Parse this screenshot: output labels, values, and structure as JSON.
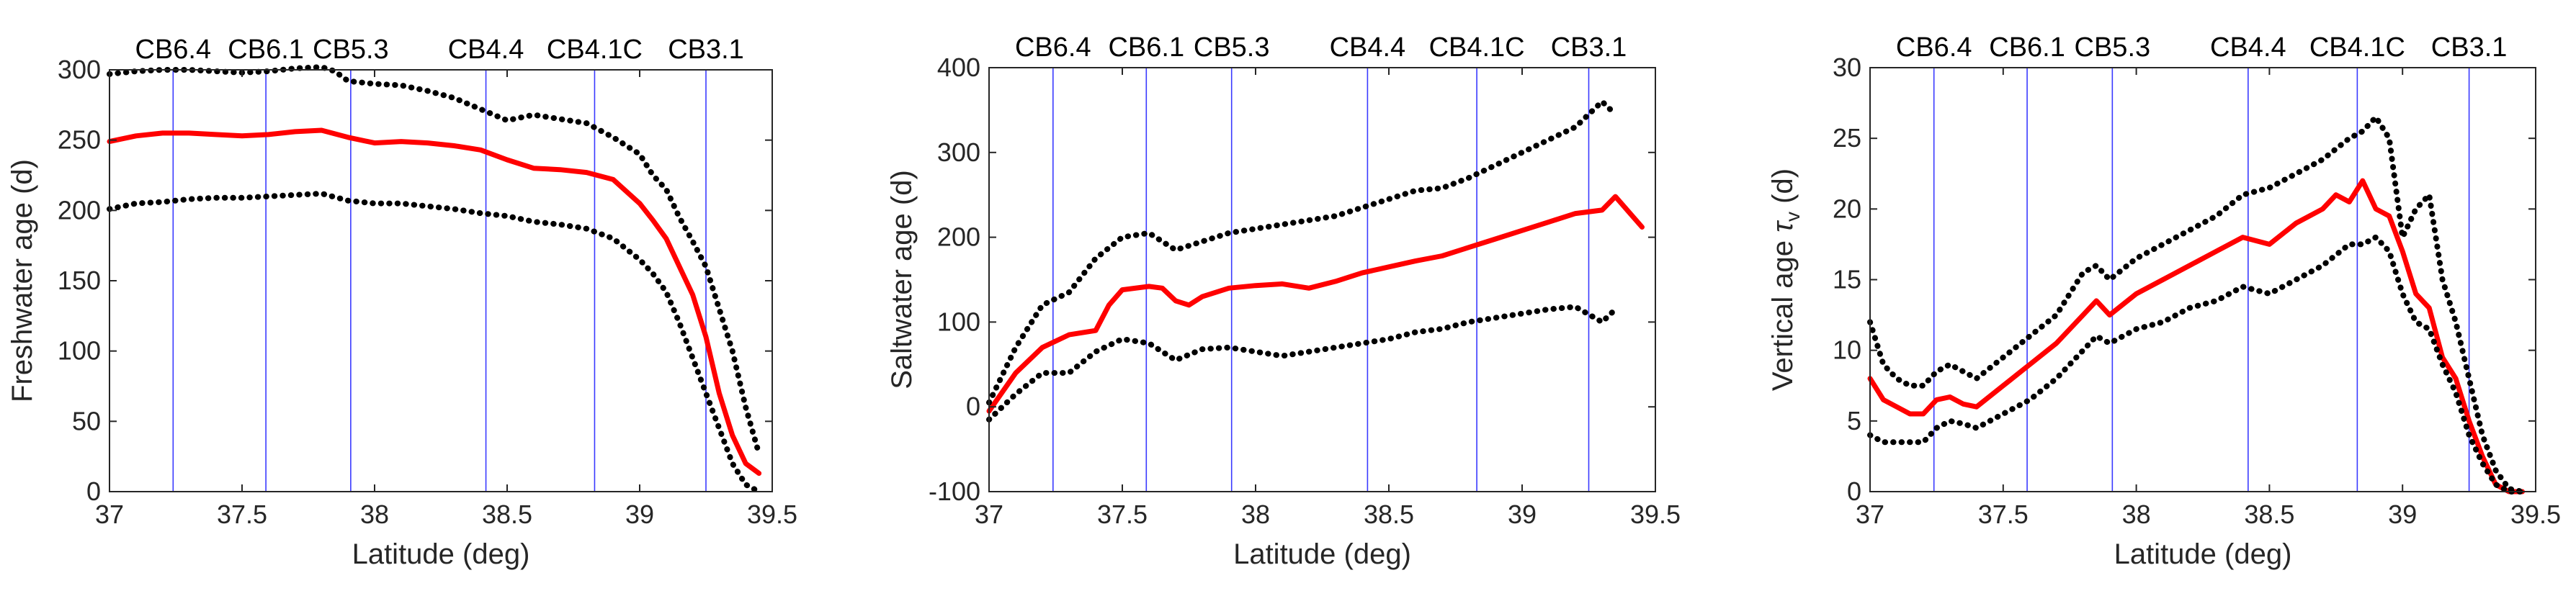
{
  "chart_data": [
    {
      "type": "line",
      "xlabel": "Latitude (deg)",
      "ylabel": "Freshwater age (d)",
      "xlim": [
        37,
        39.5
      ],
      "ylim": [
        0,
        300
      ],
      "xticks": [
        37,
        37.5,
        38,
        38.5,
        39,
        39.5
      ],
      "yticks": [
        0,
        50,
        100,
        150,
        200,
        250,
        300
      ],
      "stations": [
        {
          "name": "CB6.4",
          "lat": 37.24
        },
        {
          "name": "CB6.1",
          "lat": 37.59
        },
        {
          "name": "CB5.3",
          "lat": 37.91
        },
        {
          "name": "CB4.4",
          "lat": 38.42
        },
        {
          "name": "CB4.1C",
          "lat": 38.83
        },
        {
          "name": "CB3.1",
          "lat": 39.25
        }
      ],
      "series": [
        {
          "role": "mean",
          "color": "#ff0000",
          "style": "solid",
          "x": [
            37.0,
            37.1,
            37.2,
            37.3,
            37.4,
            37.5,
            37.6,
            37.7,
            37.8,
            37.9,
            38.0,
            38.1,
            38.2,
            38.3,
            38.4,
            38.5,
            38.6,
            38.7,
            38.8,
            38.9,
            39.0,
            39.05,
            39.1,
            39.15,
            39.2,
            39.25,
            39.3,
            39.35,
            39.4,
            39.45
          ],
          "y": [
            249,
            253,
            255,
            255,
            254,
            253,
            254,
            256,
            257,
            252,
            248,
            249,
            248,
            246,
            243,
            236,
            230,
            229,
            227,
            222,
            205,
            193,
            180,
            160,
            140,
            110,
            70,
            40,
            20,
            13
          ]
        },
        {
          "role": "upper",
          "color": "#000000",
          "style": "dotted",
          "x": [
            37.0,
            37.1,
            37.2,
            37.3,
            37.4,
            37.5,
            37.6,
            37.7,
            37.8,
            37.85,
            37.9,
            38.0,
            38.1,
            38.2,
            38.3,
            38.4,
            38.5,
            38.6,
            38.7,
            38.8,
            38.9,
            39.0,
            39.05,
            39.1,
            39.15,
            39.2,
            39.25,
            39.3,
            39.35,
            39.4,
            39.45
          ],
          "y": [
            297,
            299,
            300,
            300,
            299,
            298,
            299,
            301,
            302,
            299,
            292,
            290,
            289,
            285,
            280,
            272,
            264,
            268,
            265,
            262,
            252,
            240,
            225,
            215,
            195,
            178,
            160,
            130,
            100,
            60,
            27
          ]
        },
        {
          "role": "lower",
          "color": "#000000",
          "style": "dotted",
          "x": [
            37.0,
            37.1,
            37.2,
            37.3,
            37.4,
            37.5,
            37.6,
            37.7,
            37.8,
            37.9,
            38.0,
            38.1,
            38.2,
            38.3,
            38.4,
            38.5,
            38.6,
            38.7,
            38.8,
            38.9,
            39.0,
            39.05,
            39.1,
            39.15,
            39.2,
            39.25,
            39.3,
            39.35,
            39.4,
            39.45
          ],
          "y": [
            201,
            205,
            206,
            208,
            209,
            209,
            210,
            211,
            212,
            207,
            205,
            205,
            203,
            201,
            198,
            196,
            192,
            190,
            187,
            180,
            165,
            155,
            142,
            120,
            95,
            70,
            45,
            20,
            5,
            0
          ]
        }
      ]
    },
    {
      "type": "line",
      "xlabel": "Latitude (deg)",
      "ylabel": "Saltwater age (d)",
      "xlim": [
        37,
        39.5
      ],
      "ylim": [
        -100,
        400
      ],
      "xticks": [
        37,
        37.5,
        38,
        38.5,
        39,
        39.5
      ],
      "yticks": [
        -100,
        0,
        100,
        200,
        300,
        400
      ],
      "stations": [
        {
          "name": "CB6.4",
          "lat": 37.24
        },
        {
          "name": "CB6.1",
          "lat": 37.59
        },
        {
          "name": "CB5.3",
          "lat": 37.91
        },
        {
          "name": "CB4.4",
          "lat": 38.42
        },
        {
          "name": "CB4.1C",
          "lat": 38.83
        },
        {
          "name": "CB3.1",
          "lat": 39.25
        }
      ],
      "series": [
        {
          "role": "mean",
          "color": "#ff0000",
          "style": "solid",
          "x": [
            37.0,
            37.1,
            37.2,
            37.3,
            37.4,
            37.45,
            37.5,
            37.6,
            37.65,
            37.7,
            37.75,
            37.8,
            37.9,
            38.0,
            38.1,
            38.2,
            38.3,
            38.4,
            38.5,
            38.6,
            38.7,
            38.8,
            38.9,
            39.0,
            39.1,
            39.2,
            39.3,
            39.35,
            39.4,
            39.45
          ],
          "y": [
            -5,
            40,
            70,
            85,
            90,
            120,
            138,
            142,
            140,
            125,
            120,
            130,
            140,
            143,
            145,
            140,
            148,
            158,
            165,
            172,
            178,
            188,
            198,
            208,
            218,
            228,
            232,
            248,
            230,
            212
          ]
        },
        {
          "role": "upper",
          "color": "#000000",
          "style": "dotted",
          "x": [
            37.0,
            37.1,
            37.2,
            37.3,
            37.4,
            37.5,
            37.6,
            37.7,
            37.8,
            37.9,
            38.0,
            38.1,
            38.2,
            38.3,
            38.4,
            38.5,
            38.6,
            38.7,
            38.8,
            38.9,
            39.0,
            39.1,
            39.2,
            39.3,
            39.35
          ],
          "y": [
            5,
            70,
            120,
            135,
            175,
            200,
            205,
            185,
            195,
            205,
            210,
            215,
            220,
            225,
            235,
            245,
            255,
            258,
            270,
            285,
            300,
            315,
            330,
            360,
            345
          ]
        },
        {
          "role": "lower",
          "color": "#000000",
          "style": "dotted",
          "x": [
            37.0,
            37.1,
            37.2,
            37.3,
            37.4,
            37.5,
            37.6,
            37.7,
            37.8,
            37.9,
            38.0,
            38.1,
            38.2,
            38.3,
            38.4,
            38.5,
            38.6,
            38.7,
            38.8,
            38.9,
            39.0,
            39.1,
            39.2,
            39.3,
            39.35
          ],
          "y": [
            -15,
            15,
            40,
            40,
            65,
            80,
            75,
            55,
            68,
            70,
            65,
            60,
            65,
            70,
            75,
            80,
            88,
            92,
            100,
            105,
            110,
            115,
            118,
            100,
            115
          ]
        }
      ]
    },
    {
      "type": "line",
      "xlabel": "Latitude (deg)",
      "ylabel_main": "Vertical age ",
      "ylabel_symbol": "τ",
      "ylabel_subscript": "v",
      "ylabel_unit": " (d)",
      "xlim": [
        37,
        39.5
      ],
      "ylim": [
        0,
        30
      ],
      "xticks": [
        37,
        37.5,
        38,
        38.5,
        39,
        39.5
      ],
      "yticks": [
        0,
        5,
        10,
        15,
        20,
        25,
        30
      ],
      "stations": [
        {
          "name": "CB6.4",
          "lat": 37.24
        },
        {
          "name": "CB6.1",
          "lat": 37.59
        },
        {
          "name": "CB5.3",
          "lat": 37.91
        },
        {
          "name": "CB4.4",
          "lat": 38.42
        },
        {
          "name": "CB4.1C",
          "lat": 38.83
        },
        {
          "name": "CB3.1",
          "lat": 39.25
        }
      ],
      "series": [
        {
          "role": "mean",
          "color": "#ff0000",
          "style": "solid",
          "x": [
            37.0,
            37.05,
            37.1,
            37.15,
            37.2,
            37.25,
            37.3,
            37.35,
            37.4,
            37.5,
            37.6,
            37.7,
            37.8,
            37.85,
            37.9,
            38.0,
            38.1,
            38.2,
            38.3,
            38.4,
            38.5,
            38.6,
            38.7,
            38.75,
            38.8,
            38.85,
            38.9,
            38.95,
            39.0,
            39.05,
            39.1,
            39.15,
            39.2,
            39.25,
            39.3,
            39.35,
            39.4,
            39.45
          ],
          "y": [
            8,
            6.5,
            6,
            5.5,
            5.5,
            6.5,
            6.7,
            6.2,
            6,
            7.5,
            9,
            10.5,
            12.5,
            13.5,
            12.5,
            14,
            15,
            16,
            17,
            18,
            17.5,
            19,
            20,
            21,
            20.5,
            22,
            20,
            19.5,
            17,
            14,
            13,
            9.5,
            8,
            5,
            2.5,
            0.5,
            0,
            0
          ]
        },
        {
          "role": "upper",
          "color": "#000000",
          "style": "dotted",
          "x": [
            37.0,
            37.05,
            37.1,
            37.15,
            37.2,
            37.25,
            37.3,
            37.35,
            37.4,
            37.5,
            37.6,
            37.7,
            37.8,
            37.85,
            37.9,
            38.0,
            38.1,
            38.2,
            38.3,
            38.4,
            38.5,
            38.6,
            38.7,
            38.8,
            38.85,
            38.9,
            38.95,
            39.0,
            39.05,
            39.1,
            39.15,
            39.2,
            39.25,
            39.3,
            39.35,
            39.4,
            39.45
          ],
          "y": [
            12,
            9,
            8,
            7.5,
            7.5,
            8.5,
            9,
            8.5,
            8,
            9.5,
            11,
            12.5,
            15.5,
            16,
            15,
            16.5,
            17.5,
            18.5,
            19.5,
            21,
            21.5,
            22.5,
            23.5,
            25,
            25.5,
            26.5,
            25,
            18,
            20,
            21,
            15,
            12,
            8,
            4,
            1.5,
            0.2,
            0
          ]
        },
        {
          "role": "lower",
          "color": "#000000",
          "style": "dotted",
          "x": [
            37.0,
            37.05,
            37.1,
            37.15,
            37.2,
            37.25,
            37.3,
            37.35,
            37.4,
            37.5,
            37.6,
            37.7,
            37.8,
            37.85,
            37.9,
            38.0,
            38.1,
            38.2,
            38.3,
            38.4,
            38.5,
            38.6,
            38.7,
            38.8,
            38.85,
            38.9,
            38.95,
            39.0,
            39.05,
            39.1,
            39.15,
            39.2,
            39.25,
            39.3,
            39.35,
            39.4,
            39.45
          ],
          "y": [
            4,
            3.5,
            3.5,
            3.5,
            3.5,
            4.5,
            5,
            4.8,
            4.5,
            5.5,
            6.5,
            8,
            10,
            11,
            10.5,
            11.5,
            12,
            13,
            13.5,
            14.5,
            14,
            15,
            16,
            17.5,
            17.5,
            18,
            17,
            14,
            12,
            11.5,
            9,
            7,
            4,
            2,
            0.5,
            0,
            0
          ]
        }
      ]
    }
  ]
}
